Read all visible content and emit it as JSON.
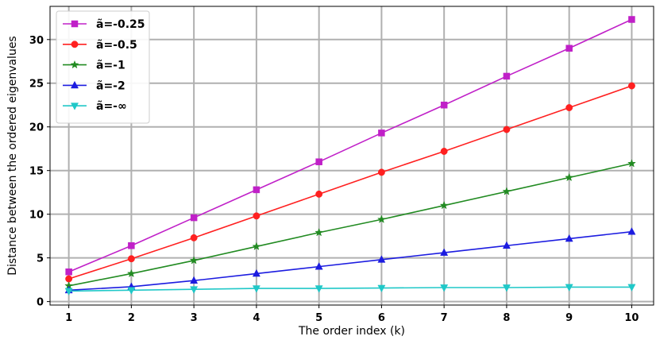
{
  "chart_data": {
    "type": "line",
    "xlabel": "The order index (k)",
    "ylabel": "Distance between the ordered eigenvalues",
    "x": [
      1,
      2,
      3,
      4,
      5,
      6,
      7,
      8,
      9,
      10
    ],
    "xlim": [
      0.7,
      10.35
    ],
    "ylim": [
      -0.4,
      33.8
    ],
    "xticks": [
      1,
      2,
      3,
      4,
      5,
      6,
      7,
      8,
      9,
      10
    ],
    "yticks": [
      0,
      5,
      10,
      15,
      20,
      25,
      30
    ],
    "grid": true,
    "legend_position": "top-left",
    "series": [
      {
        "name": "ã=-0.25",
        "color": "#c020c8",
        "marker": "square",
        "values": [
          3.4,
          6.4,
          9.6,
          12.8,
          16.0,
          19.3,
          22.5,
          25.8,
          29.0,
          32.3
        ]
      },
      {
        "name": "ã=-0.5",
        "color": "#ff2020",
        "marker": "circle",
        "values": [
          2.6,
          4.9,
          7.3,
          9.8,
          12.3,
          14.8,
          17.2,
          19.7,
          22.2,
          24.7
        ]
      },
      {
        "name": "ã=-1",
        "color": "#228b22",
        "marker": "star",
        "values": [
          1.8,
          3.2,
          4.7,
          6.3,
          7.9,
          9.4,
          11.0,
          12.6,
          14.2,
          15.8
        ]
      },
      {
        "name": "ã=-2",
        "color": "#1c1ce0",
        "marker": "triangle-up",
        "values": [
          1.3,
          1.7,
          2.4,
          3.2,
          4.0,
          4.8,
          5.6,
          6.4,
          7.2,
          8.0
        ]
      },
      {
        "name": "ã=-∞",
        "color": "#20c8c8",
        "marker": "triangle-down",
        "values": [
          1.2,
          1.3,
          1.4,
          1.5,
          1.5,
          1.55,
          1.6,
          1.6,
          1.65,
          1.65
        ]
      }
    ]
  }
}
